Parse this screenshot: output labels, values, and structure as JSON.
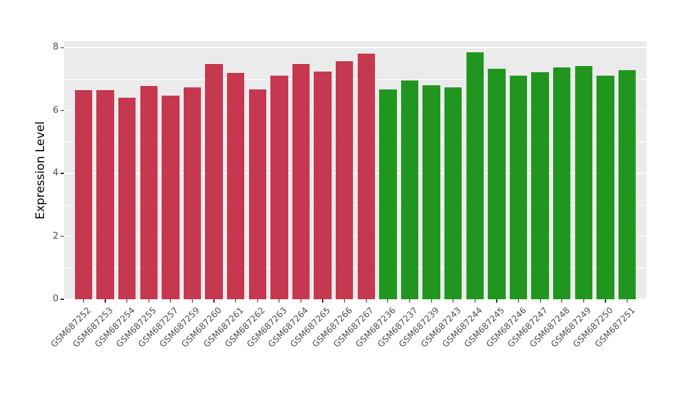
{
  "chart_data": {
    "type": "bar",
    "title": "",
    "xlabel": "",
    "ylabel": "Expression Level",
    "ylim": [
      0,
      8.2
    ],
    "yticks": [
      0,
      2,
      4,
      6,
      8
    ],
    "yticks_minor": [
      1,
      3,
      5,
      7
    ],
    "grid": "major-and-minor-horizontal",
    "legend_position": "none",
    "panel_background": "#EBEBEB",
    "grid_color": "#FFFFFF",
    "tick_label_color": "#4D4D4D",
    "group_colors": [
      "#C5384F",
      "#21961F"
    ],
    "categories": [
      "GSM687252",
      "GSM687253",
      "GSM687254",
      "GSM687255",
      "GSM687257",
      "GSM687259",
      "GSM687260",
      "GSM687261",
      "GSM687262",
      "GSM687263",
      "GSM687264",
      "GSM687265",
      "GSM687266",
      "GSM687267",
      "GSM687236",
      "GSM687237",
      "GSM687239",
      "GSM687243",
      "GSM687244",
      "GSM687245",
      "GSM687246",
      "GSM687247",
      "GSM687248",
      "GSM687249",
      "GSM687250",
      "GSM687251"
    ],
    "values": [
      6.65,
      6.65,
      6.41,
      6.78,
      6.47,
      6.74,
      7.48,
      7.19,
      6.67,
      7.11,
      7.48,
      7.24,
      7.56,
      7.8,
      6.67,
      6.95,
      6.8,
      6.74,
      7.85,
      7.32,
      7.11,
      7.21,
      7.37,
      7.41,
      7.11,
      7.28
    ],
    "group_index": [
      0,
      0,
      0,
      0,
      0,
      0,
      0,
      0,
      0,
      0,
      0,
      0,
      0,
      0,
      1,
      1,
      1,
      1,
      1,
      1,
      1,
      1,
      1,
      1,
      1,
      1
    ]
  }
}
